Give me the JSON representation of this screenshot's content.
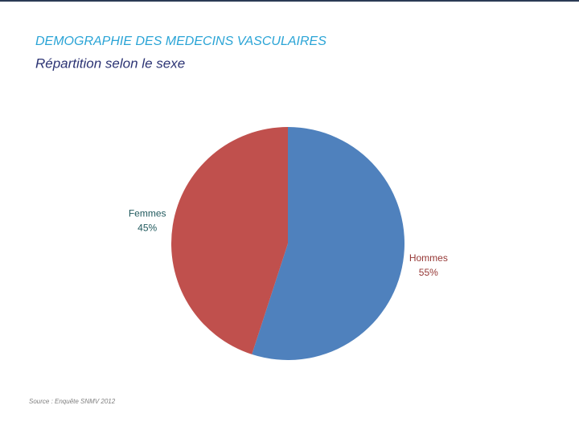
{
  "chart_data": {
    "type": "pie",
    "title": "DEMOGRAPHIE DES MEDECINS VASCULAIRES",
    "subtitle": "Répartition selon le sexe",
    "source": "Source : Enquête SNMV 2012",
    "categories": [
      "Hommes",
      "Femmes"
    ],
    "values": [
      55,
      45
    ],
    "value_labels": [
      "55%",
      "45%"
    ],
    "colors": [
      "#4f81bd",
      "#c0504d"
    ],
    "label_colors": [
      "#953735",
      "#215a5e"
    ]
  }
}
